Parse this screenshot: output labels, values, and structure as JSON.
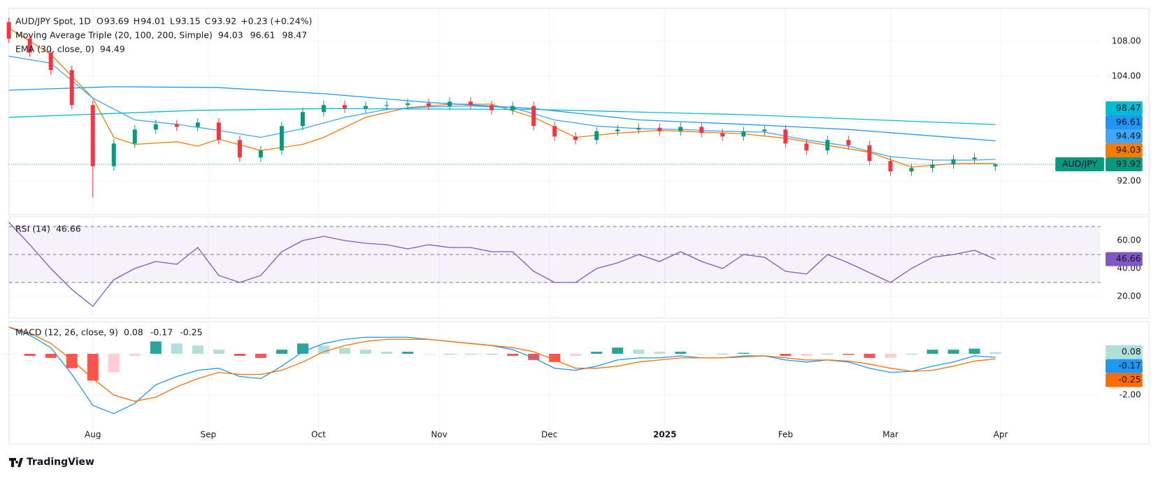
{
  "chart_data": [
    {
      "type": "candlestick",
      "title": "AUD/JPY Spot, 1D",
      "ohlc_labels": [
        "O",
        "H",
        "L",
        "C"
      ],
      "change": "+0.23",
      "change_pct": "(+0.24%)",
      "symbol_label": "AUD/JPY",
      "up_color": "#089981",
      "down_color": "#f23645",
      "x": [
        0,
        4,
        8,
        12,
        16,
        20,
        24,
        28,
        32,
        36,
        40,
        44,
        48,
        52,
        56,
        60,
        64,
        68,
        72,
        76,
        80,
        84,
        88,
        92,
        96,
        100,
        104,
        108,
        112,
        116,
        120,
        124,
        128,
        132,
        136,
        140,
        144,
        148,
        152,
        156,
        160,
        164,
        168,
        172,
        176,
        180,
        184,
        188
      ],
      "open": [
        110.2,
        108.3,
        106.7,
        104.7,
        100.7,
        93.7,
        96.3,
        97.9,
        98.5,
        98.2,
        98.7,
        96.7,
        94.7,
        95.5,
        98.3,
        99.9,
        100.7,
        100.3,
        100.6,
        100.7,
        100.9,
        100.6,
        101.1,
        100.7,
        100.1,
        100.6,
        98.3,
        97.1,
        96.7,
        97.7,
        97.9,
        98.1,
        97.7,
        98.2,
        97.5,
        97.1,
        97.7,
        97.9,
        96.3,
        95.5,
        96.7,
        96.1,
        94.3,
        93.1,
        93.5,
        93.9,
        94.5,
        93.69
      ],
      "high": [
        110.7,
        108.8,
        107.2,
        105.2,
        101.2,
        96.8,
        98.4,
        99.0,
        99.0,
        99.2,
        99.2,
        97.2,
        96.0,
        98.8,
        100.4,
        101.2,
        101.2,
        101.1,
        101.2,
        101.4,
        101.4,
        101.6,
        101.6,
        101.2,
        101.1,
        101.1,
        98.8,
        97.6,
        98.2,
        98.4,
        98.6,
        98.6,
        98.7,
        98.7,
        98.0,
        98.2,
        98.4,
        98.4,
        96.8,
        97.2,
        97.2,
        96.6,
        94.8,
        94.0,
        94.4,
        95.0,
        95.2,
        94.01
      ],
      "low": [
        107.8,
        106.2,
        104.2,
        100.2,
        90.1,
        93.2,
        95.8,
        97.4,
        97.7,
        97.7,
        96.2,
        94.2,
        94.2,
        95.0,
        97.8,
        99.4,
        99.8,
        99.8,
        100.1,
        100.2,
        100.1,
        100.1,
        100.2,
        99.6,
        99.6,
        97.8,
        96.6,
        96.2,
        96.2,
        97.2,
        97.4,
        97.2,
        97.2,
        97.0,
        96.6,
        96.6,
        97.2,
        95.8,
        95.0,
        95.0,
        95.6,
        93.8,
        92.6,
        92.6,
        93.0,
        93.4,
        94.0,
        93.15
      ],
      "close": [
        108.3,
        106.7,
        104.7,
        100.7,
        93.7,
        96.3,
        97.9,
        98.5,
        98.2,
        98.7,
        96.7,
        94.7,
        95.5,
        98.3,
        99.9,
        100.7,
        100.3,
        100.6,
        100.7,
        100.9,
        100.6,
        101.1,
        100.7,
        100.1,
        100.6,
        98.3,
        97.1,
        96.7,
        97.7,
        97.9,
        98.1,
        97.7,
        98.2,
        97.5,
        97.1,
        97.7,
        97.9,
        96.3,
        95.5,
        96.7,
        96.1,
        94.3,
        93.1,
        93.5,
        93.9,
        94.5,
        94.7,
        93.92
      ],
      "xlim": [
        0,
        208
      ],
      "xticks": [
        {
          "value": 16,
          "label": "Aug"
        },
        {
          "value": 38,
          "label": "Sep"
        },
        {
          "value": 59,
          "label": "Oct"
        },
        {
          "value": 82,
          "label": "Nov"
        },
        {
          "value": 103,
          "label": "Dec"
        },
        {
          "value": 125,
          "label": "2025",
          "bold": true
        },
        {
          "value": 148,
          "label": "Feb"
        },
        {
          "value": 168,
          "label": "Mar"
        },
        {
          "value": 189,
          "label": "Apr"
        }
      ],
      "ylim": [
        88.16,
        111.76
      ],
      "yticks": [
        {
          "value": 92,
          "label": "92.00"
        },
        {
          "value": 104,
          "label": "104.00"
        },
        {
          "value": 108,
          "label": "108.00"
        }
      ],
      "grid": true,
      "indicators": [
        {
          "name": "Moving Average Triple (20, 100, 200, Simple)",
          "series": [
            {
              "color": "#f57c00",
              "x": [
                0,
                8,
                16,
                20,
                24,
                32,
                36,
                40,
                48,
                56,
                60,
                68,
                76,
                84,
                92,
                100,
                108,
                116,
                124,
                132,
                140,
                148,
                156,
                164,
                172,
                180,
                188
              ],
              "values": [
                109.5,
                106.5,
                101.5,
                97.0,
                96.2,
                96.5,
                96.0,
                96.8,
                95.5,
                96.2,
                97.0,
                99.3,
                100.4,
                100.8,
                100.8,
                99.3,
                97.0,
                97.5,
                97.8,
                97.6,
                97.4,
                96.9,
                96.1,
                95.3,
                93.6,
                94.0,
                94.03
              ]
            },
            {
              "color": "#2196f3",
              "x": [
                0,
                20,
                40,
                60,
                80,
                100,
                120,
                140,
                160,
                188
              ],
              "values": [
                102.4,
                102.8,
                102.7,
                102.0,
                101.0,
                100.3,
                99.0,
                98.5,
                97.9,
                96.61
              ]
            },
            {
              "color": "#00bcd4",
              "x": [
                0,
                36,
                60,
                100,
                140,
                188
              ],
              "values": [
                99.3,
                100.1,
                100.3,
                100.2,
                99.6,
                98.47
              ]
            }
          ]
        },
        {
          "name": "EMA (30, close, 0)",
          "series": [
            {
              "color": "#42a5f5",
              "x": [
                0,
                8,
                16,
                24,
                32,
                40,
                48,
                56,
                64,
                72,
                80,
                88,
                96,
                104,
                112,
                120,
                128,
                136,
                144,
                152,
                160,
                168,
                176,
                184,
                188
              ],
              "values": [
                106.3,
                105.5,
                101.5,
                99.0,
                98.5,
                97.8,
                97.0,
                98.0,
                99.3,
                100.2,
                100.5,
                100.6,
                100.4,
                99.0,
                98.3,
                98.0,
                97.9,
                97.7,
                97.6,
                96.7,
                96.0,
                94.8,
                94.4,
                94.4,
                94.49
              ]
            }
          ]
        }
      ]
    },
    {
      "type": "line",
      "title": "RSI (14)",
      "color": "#7e57c2",
      "band_fill": "#7e57c2",
      "x": [
        0,
        4,
        8,
        12,
        16,
        20,
        24,
        28,
        32,
        36,
        40,
        44,
        48,
        52,
        56,
        60,
        64,
        68,
        72,
        76,
        80,
        84,
        88,
        92,
        96,
        100,
        104,
        108,
        112,
        116,
        120,
        124,
        128,
        132,
        136,
        140,
        144,
        148,
        152,
        156,
        160,
        164,
        168,
        172,
        176,
        180,
        184,
        188
      ],
      "values": [
        73,
        57,
        40,
        25,
        13,
        32,
        40,
        45,
        43,
        55,
        35,
        30,
        35,
        52,
        60,
        63,
        60,
        58,
        57,
        54,
        57,
        55,
        55,
        52,
        52,
        38,
        30,
        30,
        40,
        44,
        50,
        45,
        52,
        45,
        40,
        50,
        48,
        38,
        36,
        50,
        44,
        37,
        30,
        40,
        48,
        50,
        53,
        46.66
      ],
      "xlim": [
        0,
        208
      ],
      "ylim": [
        4.5,
        77
      ],
      "bands": [
        70,
        50,
        30
      ],
      "yticks": [
        {
          "value": 20,
          "label": "20.00"
        },
        {
          "value": 40,
          "label": "40.00"
        },
        {
          "value": 60,
          "label": "60.00"
        }
      ]
    },
    {
      "type": "macd",
      "title": "MACD (12, 26, close, 9)",
      "hist_colors": [
        "#26a69a",
        "#b2dfdb",
        "#ffcdd2",
        "#ff5252"
      ],
      "x": [
        0,
        4,
        8,
        12,
        16,
        20,
        24,
        28,
        32,
        36,
        40,
        44,
        48,
        52,
        56,
        60,
        64,
        68,
        72,
        76,
        80,
        84,
        88,
        92,
        96,
        100,
        104,
        108,
        112,
        116,
        120,
        124,
        128,
        132,
        136,
        140,
        144,
        148,
        152,
        156,
        160,
        164,
        168,
        172,
        176,
        180,
        184,
        188
      ],
      "histogram": [
        -0.01,
        -0.1,
        -0.2,
        -0.7,
        -1.3,
        -0.9,
        -0.1,
        0.6,
        0.5,
        0.4,
        0.2,
        -0.1,
        -0.2,
        0.2,
        0.5,
        0.4,
        0.3,
        0.2,
        0.1,
        0.1,
        0,
        0,
        0,
        0,
        -0.1,
        -0.3,
        -0.4,
        -0.1,
        0.1,
        0.3,
        0.2,
        0.1,
        0.1,
        0,
        0,
        0.05,
        0,
        -0.1,
        -0.1,
        0,
        -0.05,
        -0.2,
        -0.2,
        0,
        0.2,
        0.2,
        0.25,
        0.08
      ],
      "series": [
        {
          "color": "#2196f3",
          "values": [
            1.29,
            0.9,
            0.3,
            -1.0,
            -2.5,
            -2.9,
            -2.4,
            -1.5,
            -1.1,
            -0.8,
            -0.7,
            -1.1,
            -1.2,
            -0.6,
            0.1,
            0.5,
            0.7,
            0.8,
            0.8,
            0.8,
            0.7,
            0.6,
            0.5,
            0.4,
            0.2,
            -0.2,
            -0.7,
            -0.8,
            -0.6,
            -0.3,
            -0.2,
            -0.2,
            -0.1,
            -0.2,
            -0.2,
            -0.1,
            -0.1,
            -0.3,
            -0.4,
            -0.3,
            -0.4,
            -0.7,
            -0.9,
            -0.85,
            -0.6,
            -0.4,
            -0.1,
            -0.17
          ]
        },
        {
          "color": "#ff6d00",
          "values": [
            1.3,
            1.0,
            0.5,
            -0.3,
            -1.2,
            -2.0,
            -2.3,
            -2.1,
            -1.6,
            -1.2,
            -0.9,
            -1.0,
            -1.0,
            -0.8,
            -0.4,
            0.1,
            0.4,
            0.6,
            0.7,
            0.7,
            0.7,
            0.6,
            0.5,
            0.4,
            0.3,
            0.1,
            -0.3,
            -0.7,
            -0.7,
            -0.6,
            -0.4,
            -0.3,
            -0.2,
            -0.2,
            -0.2,
            -0.15,
            -0.1,
            -0.2,
            -0.3,
            -0.3,
            -0.35,
            -0.5,
            -0.7,
            -0.85,
            -0.8,
            -0.6,
            -0.35,
            -0.25
          ]
        }
      ],
      "xlim": [
        0,
        208
      ],
      "ylim": [
        -4.37,
        1.56
      ],
      "yticks": [
        {
          "value": -2,
          "label": "-2.00"
        }
      ]
    }
  ],
  "footer": {
    "brand": "TradingView"
  }
}
